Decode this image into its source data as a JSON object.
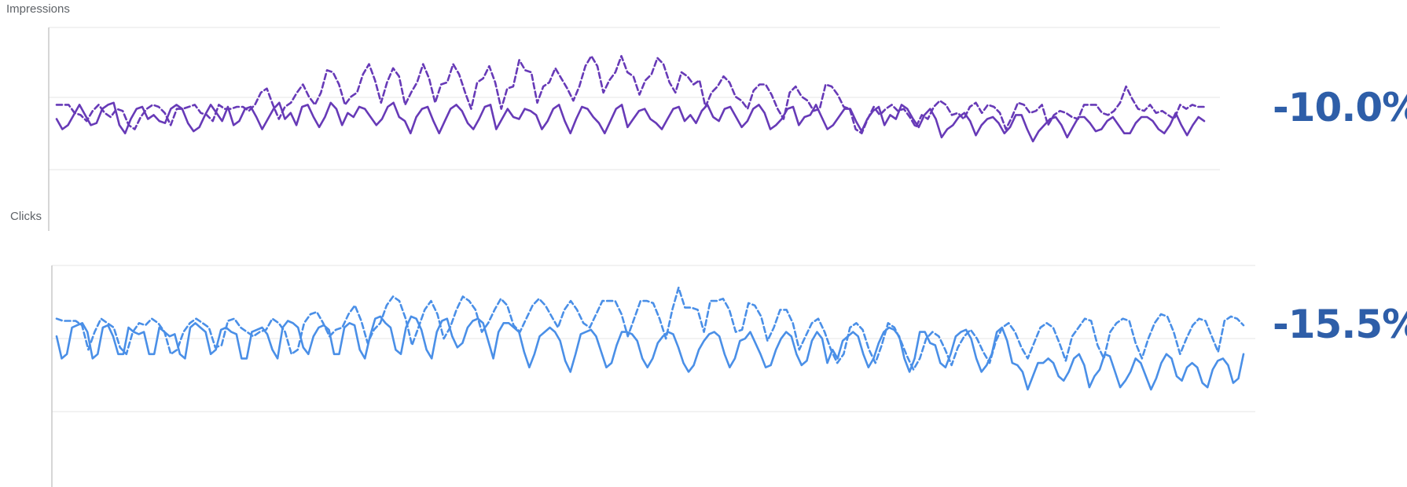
{
  "chart_data": [
    {
      "type": "line",
      "title": "Impressions",
      "change_label": "-10.0%",
      "ylim": [
        0,
        100
      ],
      "grid": true,
      "colors": {
        "line": "#673ab7"
      },
      "series": [
        {
          "style": "dashed",
          "values": [
            62,
            62,
            62,
            58,
            57,
            54,
            59,
            62,
            58,
            56,
            60,
            59,
            52,
            50,
            56,
            60,
            62,
            61,
            58,
            52,
            60,
            60,
            61,
            62,
            58,
            57,
            54,
            62,
            60,
            60,
            61,
            61,
            59,
            62,
            68,
            70,
            62,
            55,
            61,
            63,
            68,
            72,
            66,
            62,
            68,
            79,
            78,
            72,
            62,
            66,
            68,
            77,
            82,
            74,
            63,
            73,
            80,
            76,
            62,
            68,
            73,
            82,
            75,
            63,
            72,
            73,
            82,
            77,
            68,
            60,
            73,
            75,
            81,
            73,
            60,
            70,
            71,
            84,
            79,
            78,
            63,
            71,
            73,
            80,
            75,
            70,
            64,
            71,
            81,
            86,
            81,
            68,
            74,
            78,
            86,
            78,
            76,
            67,
            74,
            77,
            85,
            82,
            73,
            68,
            78,
            76,
            72,
            74,
            61,
            68,
            71,
            76,
            73,
            66,
            64,
            60,
            69,
            72,
            72,
            67,
            60,
            55,
            68,
            71,
            66,
            64,
            59,
            60,
            72,
            71,
            67,
            61,
            60,
            50,
            48,
            55,
            61,
            57,
            60,
            62,
            59,
            60,
            56,
            51,
            57,
            55,
            61,
            64,
            62,
            57,
            58,
            55,
            61,
            63,
            58,
            62,
            61,
            58,
            50,
            56,
            63,
            62,
            58,
            59,
            62,
            52,
            57,
            59,
            58,
            56,
            55,
            62,
            62,
            62,
            58,
            57,
            59,
            63,
            71,
            65,
            60,
            59,
            62,
            58,
            59,
            57,
            55,
            62,
            60,
            62,
            61,
            61
          ]
        },
        {
          "style": "solid",
          "values": [
            55,
            50,
            52,
            57,
            62,
            57,
            52,
            53,
            60,
            62,
            63,
            52,
            48,
            55,
            60,
            61,
            55,
            57,
            54,
            53,
            60,
            62,
            60,
            53,
            49,
            51,
            57,
            62,
            58,
            54,
            61,
            52,
            54,
            60,
            61,
            56,
            50,
            55,
            60,
            63,
            55,
            58,
            52,
            61,
            62,
            56,
            51,
            56,
            63,
            60,
            52,
            58,
            56,
            61,
            60,
            56,
            52,
            55,
            61,
            63,
            56,
            54,
            48,
            56,
            60,
            61,
            54,
            48,
            54,
            60,
            62,
            59,
            53,
            50,
            55,
            61,
            62,
            50,
            55,
            60,
            56,
            55,
            60,
            59,
            57,
            50,
            54,
            60,
            62,
            54,
            48,
            55,
            61,
            60,
            56,
            53,
            48,
            54,
            60,
            62,
            51,
            55,
            59,
            60,
            55,
            53,
            50,
            55,
            60,
            61,
            54,
            57,
            53,
            59,
            62,
            56,
            54,
            60,
            61,
            56,
            51,
            54,
            60,
            62,
            58,
            50,
            52,
            55,
            60,
            61,
            52,
            56,
            57,
            62,
            56,
            50,
            52,
            56,
            60,
            60,
            54,
            49,
            55,
            59,
            61,
            52,
            57,
            55,
            62,
            60,
            55,
            51,
            57,
            60,
            55,
            46,
            50,
            52,
            56,
            58,
            54,
            47,
            52,
            55,
            56,
            53,
            48,
            51,
            57,
            57,
            50,
            44,
            49,
            52,
            55,
            56,
            52,
            46,
            51,
            56,
            56,
            53,
            49,
            50,
            54,
            56,
            52,
            48,
            48,
            53,
            56,
            56,
            54,
            50,
            48,
            52,
            58,
            52,
            47,
            52,
            56,
            54
          ]
        }
      ]
    },
    {
      "type": "line",
      "title": "Clicks",
      "change_label": "-15.5%",
      "ylim": [
        0,
        100
      ],
      "grid": true,
      "colors": {
        "line": "#4a8fe7"
      },
      "series": [
        {
          "style": "dashed",
          "values": [
            76,
            75,
            75,
            75,
            73,
            62,
            70,
            76,
            74,
            72,
            63,
            60,
            70,
            74,
            73,
            76,
            74,
            70,
            60,
            62,
            70,
            74,
            76,
            74,
            72,
            63,
            64,
            75,
            76,
            72,
            70,
            68,
            70,
            71,
            76,
            74,
            70,
            60,
            62,
            74,
            78,
            79,
            74,
            68,
            71,
            72,
            78,
            82,
            75,
            65,
            71,
            74,
            82,
            86,
            84,
            76,
            64,
            72,
            80,
            84,
            78,
            67,
            72,
            80,
            86,
            84,
            80,
            70,
            74,
            80,
            85,
            82,
            73,
            70,
            76,
            82,
            85,
            82,
            77,
            72,
            80,
            84,
            80,
            74,
            72,
            78,
            84,
            84,
            84,
            78,
            68,
            76,
            84,
            84,
            83,
            76,
            67,
            80,
            90,
            81,
            81,
            80,
            70,
            84,
            84,
            85,
            80,
            70,
            71,
            83,
            82,
            77,
            66,
            72,
            80,
            80,
            74,
            62,
            68,
            74,
            76,
            70,
            62,
            56,
            60,
            72,
            74,
            71,
            62,
            56,
            64,
            74,
            72,
            66,
            59,
            53,
            58,
            67,
            70,
            68,
            62,
            55,
            63,
            68,
            71,
            67,
            61,
            56,
            66,
            72,
            74,
            70,
            63,
            58,
            65,
            72,
            74,
            72,
            65,
            57,
            68,
            72,
            76,
            75,
            64,
            58,
            70,
            74,
            76,
            75,
            65,
            58,
            67,
            74,
            78,
            77,
            70,
            60,
            67,
            73,
            76,
            75,
            68,
            61,
            75,
            77,
            76,
            73
          ]
        },
        {
          "style": "solid",
          "values": [
            68,
            58,
            60,
            72,
            73,
            74,
            70,
            58,
            60,
            72,
            73,
            68,
            60,
            60,
            72,
            70,
            69,
            70,
            60,
            60,
            72,
            70,
            68,
            69,
            60,
            58,
            72,
            74,
            72,
            70,
            60,
            62,
            71,
            72,
            70,
            69,
            58,
            58,
            70,
            71,
            72,
            69,
            62,
            58,
            72,
            75,
            74,
            72,
            63,
            60,
            68,
            72,
            73,
            71,
            60,
            60,
            72,
            74,
            73,
            62,
            58,
            68,
            76,
            77,
            74,
            72,
            62,
            60,
            72,
            77,
            76,
            71,
            62,
            58,
            70,
            75,
            76,
            68,
            63,
            65,
            72,
            75,
            76,
            74,
            66,
            58,
            70,
            74,
            74,
            72,
            70,
            61,
            54,
            60,
            68,
            70,
            72,
            70,
            66,
            57,
            52,
            60,
            69,
            70,
            71,
            68,
            61,
            54,
            56,
            64,
            70,
            70,
            69,
            66,
            58,
            54,
            58,
            65,
            68,
            70,
            69,
            63,
            56,
            52,
            55,
            62,
            66,
            69,
            70,
            68,
            60,
            54,
            58,
            66,
            67,
            70,
            65,
            60,
            54,
            55,
            62,
            67,
            70,
            68,
            60,
            55,
            57,
            66,
            70,
            67,
            56,
            62,
            58,
            66,
            68,
            70,
            68,
            60,
            54,
            58,
            65,
            70,
            72,
            71,
            68,
            58,
            52,
            58,
            70,
            70,
            65,
            64,
            56,
            54,
            60,
            68,
            70,
            71,
            67,
            58,
            52,
            55,
            60,
            70,
            72,
            66,
            56,
            55,
            52,
            44,
            50,
            56,
            56,
            58,
            56,
            50,
            48,
            52,
            58,
            60,
            55,
            45,
            50,
            53,
            60,
            59,
            52,
            45,
            48,
            52,
            58,
            56,
            50,
            44,
            49,
            56,
            60,
            58,
            50,
            48,
            54,
            56,
            54,
            47,
            45,
            53,
            57,
            58,
            55,
            47,
            49,
            60
          ]
        }
      ]
    }
  ]
}
